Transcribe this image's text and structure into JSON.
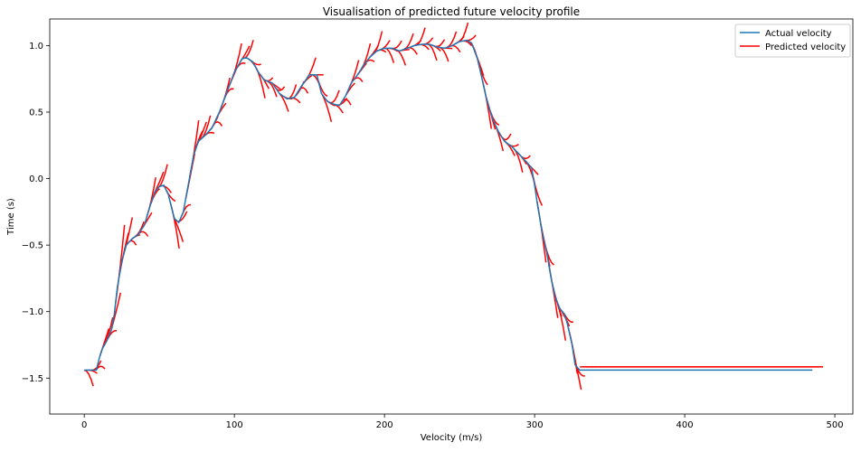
{
  "chart_data": {
    "type": "line",
    "title": "Visualisation of predicted future velocity profile",
    "xlabel": "Velocity (m/s)",
    "ylabel": "Time (s)",
    "xlim": [
      -23,
      512
    ],
    "ylim": [
      -1.77,
      1.2
    ],
    "xticks": [
      0,
      100,
      200,
      300,
      400,
      500
    ],
    "xtick_labels": [
      "0",
      "100",
      "200",
      "300",
      "400",
      "500"
    ],
    "yticks": [
      -1.5,
      -1.0,
      -0.5,
      0.0,
      0.5,
      1.0
    ],
    "ytick_labels": [
      "−1.5",
      "−1.0",
      "−0.5",
      "0.0",
      "0.5",
      "1.0"
    ],
    "grid": false,
    "legend_position": "top-right",
    "series": [
      {
        "name": "Actual velocity",
        "color": "#1f77b4",
        "x": [
          0,
          8,
          10,
          12,
          15,
          18,
          20,
          22,
          25,
          28,
          32,
          36,
          40,
          44,
          47,
          50,
          53,
          56,
          60,
          63,
          66,
          70,
          73,
          76,
          80,
          85,
          90,
          95,
          100,
          105,
          108,
          112,
          116,
          120,
          125,
          130,
          135,
          140,
          145,
          150,
          155,
          158,
          162,
          166,
          170,
          174,
          178,
          182,
          186,
          190,
          195,
          200,
          205,
          210,
          215,
          220,
          225,
          230,
          235,
          240,
          245,
          250,
          255,
          258,
          262,
          265,
          268,
          272,
          276,
          280,
          285,
          290,
          295,
          298,
          300,
          302,
          305,
          308,
          311,
          314,
          317,
          320,
          322,
          325,
          327,
          330,
          340,
          360,
          400,
          450,
          485
        ],
        "y": [
          -1.44,
          -1.44,
          -1.35,
          -1.28,
          -1.22,
          -1.14,
          -1.02,
          -0.82,
          -0.62,
          -0.5,
          -0.45,
          -0.42,
          -0.35,
          -0.2,
          -0.1,
          -0.06,
          -0.05,
          -0.12,
          -0.3,
          -0.33,
          -0.25,
          0.0,
          0.18,
          0.28,
          0.32,
          0.38,
          0.5,
          0.65,
          0.8,
          0.9,
          0.91,
          0.88,
          0.8,
          0.74,
          0.72,
          0.64,
          0.6,
          0.61,
          0.7,
          0.78,
          0.78,
          0.64,
          0.58,
          0.56,
          0.55,
          0.62,
          0.72,
          0.78,
          0.85,
          0.91,
          0.96,
          0.98,
          0.98,
          0.96,
          0.98,
          1.0,
          1.01,
          1.01,
          0.99,
          0.98,
          1.0,
          1.03,
          1.04,
          1.02,
          0.9,
          0.75,
          0.6,
          0.45,
          0.35,
          0.28,
          0.24,
          0.18,
          0.12,
          0.08,
          -0.05,
          -0.2,
          -0.4,
          -0.55,
          -0.75,
          -0.9,
          -0.98,
          -1.02,
          -1.1,
          -1.25,
          -1.4,
          -1.44,
          -1.44,
          -1.44,
          -1.44,
          -1.44,
          -1.44
        ]
      },
      {
        "name": "Predicted velocity",
        "color": "#ff0000"
      }
    ]
  }
}
